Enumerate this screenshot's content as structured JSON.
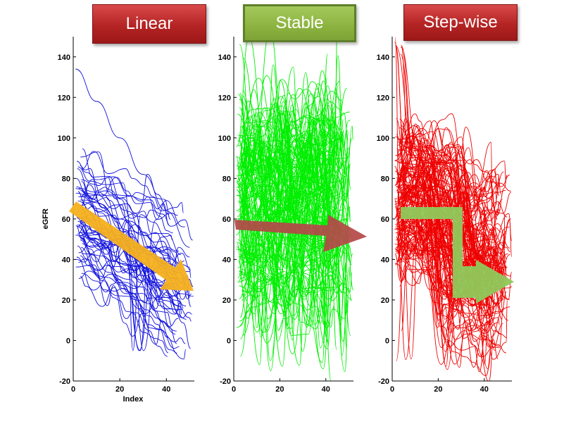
{
  "panels": [
    {
      "title": "Linear",
      "color": "#1010dd",
      "style": "red"
    },
    {
      "title": "Stable",
      "color": "#00ee00",
      "style": "green"
    },
    {
      "title": "Step-wise",
      "color": "#ee0000",
      "style": "red"
    }
  ],
  "chart_data": [
    {
      "type": "line",
      "title": "Linear",
      "xlabel": "Index",
      "ylabel": "eGFR",
      "xlim": [
        0,
        52
      ],
      "ylim": [
        -20,
        150
      ],
      "xticks": [
        0,
        20,
        40
      ],
      "yticks": [
        -20,
        0,
        20,
        40,
        60,
        80,
        100,
        120,
        140
      ],
      "series_color": "#1010dd",
      "series_count": 60,
      "trend": "linear decline",
      "sample_series": [
        {
          "x": [
            1,
            10,
            20,
            30,
            40,
            50
          ],
          "y": [
            134,
            118,
            100,
            82,
            64,
            46
          ]
        },
        {
          "x": [
            1,
            10,
            20,
            30,
            40,
            50
          ],
          "y": [
            75,
            68,
            60,
            52,
            42,
            30
          ]
        },
        {
          "x": [
            1,
            10,
            20,
            30,
            40,
            50
          ],
          "y": [
            52,
            50,
            47,
            43,
            38,
            34
          ]
        }
      ]
    },
    {
      "type": "line",
      "title": "Stable",
      "xlabel": "",
      "ylabel": "",
      "xlim": [
        0,
        52
      ],
      "ylim": [
        -20,
        150
      ],
      "xticks": [
        0,
        20,
        40
      ],
      "yticks": [
        -20,
        0,
        20,
        40,
        60,
        80,
        100,
        120,
        140
      ],
      "series_color": "#00ee00",
      "series_count": 150,
      "trend": "stable",
      "sample_series": [
        {
          "x": [
            1,
            10,
            20,
            30,
            40,
            50
          ],
          "y": [
            60,
            64,
            58,
            62,
            57,
            60
          ]
        },
        {
          "x": [
            1,
            10,
            20,
            30,
            40,
            50
          ],
          "y": [
            45,
            42,
            48,
            44,
            47,
            43
          ]
        }
      ]
    },
    {
      "type": "line",
      "title": "Step-wise",
      "xlabel": "",
      "ylabel": "",
      "xlim": [
        0,
        52
      ],
      "ylim": [
        -20,
        150
      ],
      "xticks": [
        0,
        20,
        40
      ],
      "yticks": [
        -20,
        0,
        20,
        40,
        60,
        80,
        100,
        120,
        140
      ],
      "series_color": "#ee0000",
      "series_count": 150,
      "trend": "step-wise decline",
      "sample_series": [
        {
          "x": [
            1,
            10,
            20,
            25,
            30,
            40,
            50
          ],
          "y": [
            70,
            68,
            66,
            52,
            42,
            38,
            36
          ]
        },
        {
          "x": [
            1,
            10,
            20,
            25,
            30,
            40,
            50
          ],
          "y": [
            55,
            54,
            53,
            45,
            35,
            33,
            31
          ]
        }
      ]
    }
  ]
}
